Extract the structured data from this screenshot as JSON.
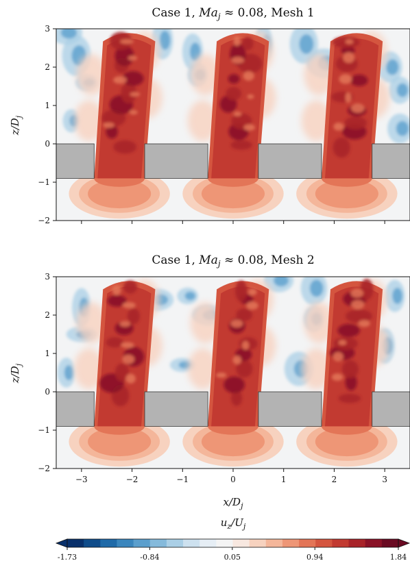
{
  "chart_data": {
    "type": "heatmap",
    "panels": [
      {
        "title_prefix": "Case 1, ",
        "title_math": "Ma",
        "title_math_sub": "j",
        "title_mid": " ≈ 0.08, ",
        "title_suffix": "Mesh 1",
        "mesh": 1
      },
      {
        "title_prefix": "Case 1, ",
        "title_math": "Ma",
        "title_math_sub": "j",
        "title_mid": " ≈ 0.08, ",
        "title_suffix": "Mesh 2",
        "mesh": 2
      }
    ],
    "xlabel": {
      "main": "x/D",
      "sub": "j"
    },
    "ylabel": {
      "main": "z/D",
      "sub": "j"
    },
    "xlim": [
      -3.5,
      3.5
    ],
    "ylim": [
      -2,
      3
    ],
    "xticks": [
      -3,
      -2,
      -1,
      0,
      1,
      2,
      3
    ],
    "xtick_labels": [
      "−3",
      "−2",
      "−1",
      "0",
      "1",
      "2",
      "3"
    ],
    "yticks": [
      -2,
      -1,
      0,
      1,
      2,
      3
    ],
    "ytick_labels": [
      "−2",
      "−1",
      "0",
      "1",
      "2",
      "3"
    ],
    "field": {
      "main": "u",
      "sub": "z",
      "over": "/U",
      "over_sub": "j"
    },
    "jets": [
      {
        "x_center": -2.25,
        "width": 1.0
      },
      {
        "x_center": 0.0,
        "width": 1.0
      },
      {
        "x_center": 2.25,
        "width": 1.0
      }
    ],
    "solid_blocks": [
      {
        "x0": -3.5,
        "x1": -2.75,
        "z0": -0.9,
        "z1": 0
      },
      {
        "x0": -1.75,
        "x1": -0.5,
        "z0": -0.9,
        "z1": 0
      },
      {
        "x0": 0.5,
        "x1": 1.75,
        "z0": -0.9,
        "z1": 0
      },
      {
        "x0": 2.75,
        "x1": 3.5,
        "z0": -0.9,
        "z1": 0
      }
    ],
    "colorbar": {
      "min": -1.73,
      "max": 1.84,
      "ticks": [
        -1.73,
        -0.84,
        0.05,
        0.94,
        1.84
      ],
      "tick_labels": [
        "-1.73",
        "-0.84",
        "0.05",
        "0.94",
        "1.84"
      ],
      "levels": 20,
      "colormap": "RdBu_r",
      "colors": [
        "#08306b",
        "#0f4c8a",
        "#1f6aa8",
        "#3a86bd",
        "#5b9fcd",
        "#85badb",
        "#aacfe6",
        "#cde1ef",
        "#e6eef5",
        "#f4f4f4",
        "#f8e8e0",
        "#f7d2bf",
        "#f4b69a",
        "#ee9676",
        "#e37557",
        "#d4553f",
        "#c23a31",
        "#a82329",
        "#8a1227",
        "#6a0a22"
      ]
    }
  }
}
